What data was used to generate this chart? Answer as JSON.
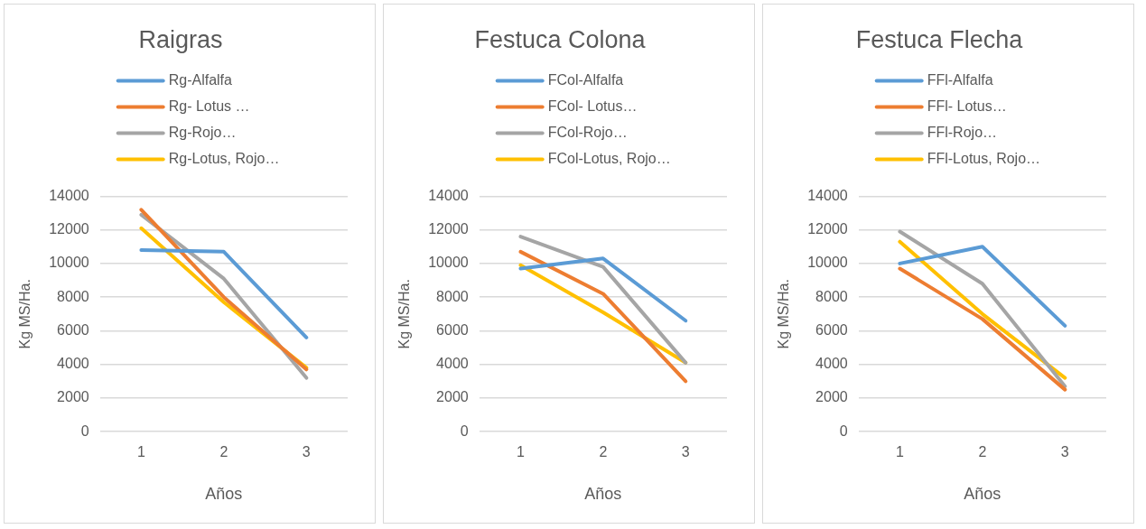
{
  "chart_data": [
    {
      "type": "line",
      "title": "Raigras",
      "xlabel": "Años",
      "ylabel": "Kg MS/Ha.",
      "categories": [
        "1",
        "2",
        "3"
      ],
      "ylim": [
        0,
        14000
      ],
      "yticks": [
        0,
        2000,
        4000,
        6000,
        8000,
        10000,
        12000,
        14000
      ],
      "grid": "y",
      "legend": "top",
      "marker": "none",
      "series": [
        {
          "name": "Rg-Alfalfa",
          "color": "#5b9bd5",
          "values": [
            10800,
            10700,
            5600
          ]
        },
        {
          "name": "Rg- Lotus …",
          "color": "#ed7d31",
          "values": [
            13200,
            8000,
            3700
          ]
        },
        {
          "name": "Rg-Rojo…",
          "color": "#a5a5a5",
          "values": [
            12900,
            9100,
            3200
          ]
        },
        {
          "name": "Rg-Lotus, Rojo…",
          "color": "#ffc000",
          "values": [
            12100,
            7700,
            3800
          ]
        }
      ]
    },
    {
      "type": "line",
      "title": "Festuca Colona",
      "xlabel": "Años",
      "ylabel": "Kg MS/Ha.",
      "categories": [
        "1",
        "2",
        "3"
      ],
      "ylim": [
        0,
        14000
      ],
      "yticks": [
        0,
        2000,
        4000,
        6000,
        8000,
        10000,
        12000,
        14000
      ],
      "grid": "y",
      "legend": "top",
      "marker": "none",
      "series": [
        {
          "name": "FCol-Alfalfa",
          "color": "#5b9bd5",
          "values": [
            9700,
            10300,
            6600
          ]
        },
        {
          "name": "FCol- Lotus…",
          "color": "#ed7d31",
          "values": [
            10700,
            8200,
            3000
          ]
        },
        {
          "name": "FCol-Rojo…",
          "color": "#a5a5a5",
          "values": [
            11600,
            9800,
            4100
          ]
        },
        {
          "name": "FCol-Lotus, Rojo…",
          "color": "#ffc000",
          "values": [
            9900,
            7100,
            4100
          ]
        }
      ]
    },
    {
      "type": "line",
      "title": "Festuca Flecha",
      "xlabel": "Años",
      "ylabel": "Kg MS/Ha.",
      "categories": [
        "1",
        "2",
        "3"
      ],
      "ylim": [
        0,
        14000
      ],
      "yticks": [
        0,
        2000,
        4000,
        6000,
        8000,
        10000,
        12000,
        14000
      ],
      "grid": "y",
      "legend": "top",
      "marker": "none",
      "series": [
        {
          "name": "FFl-Alfalfa",
          "color": "#5b9bd5",
          "values": [
            10000,
            11000,
            6300
          ]
        },
        {
          "name": "FFl- Lotus…",
          "color": "#ed7d31",
          "values": [
            9700,
            6700,
            2500
          ]
        },
        {
          "name": "FFl-Rojo…",
          "color": "#a5a5a5",
          "values": [
            11900,
            8800,
            2700
          ]
        },
        {
          "name": "FFl-Lotus, Rojo…",
          "color": "#ffc000",
          "values": [
            11300,
            7000,
            3200
          ]
        }
      ]
    }
  ]
}
